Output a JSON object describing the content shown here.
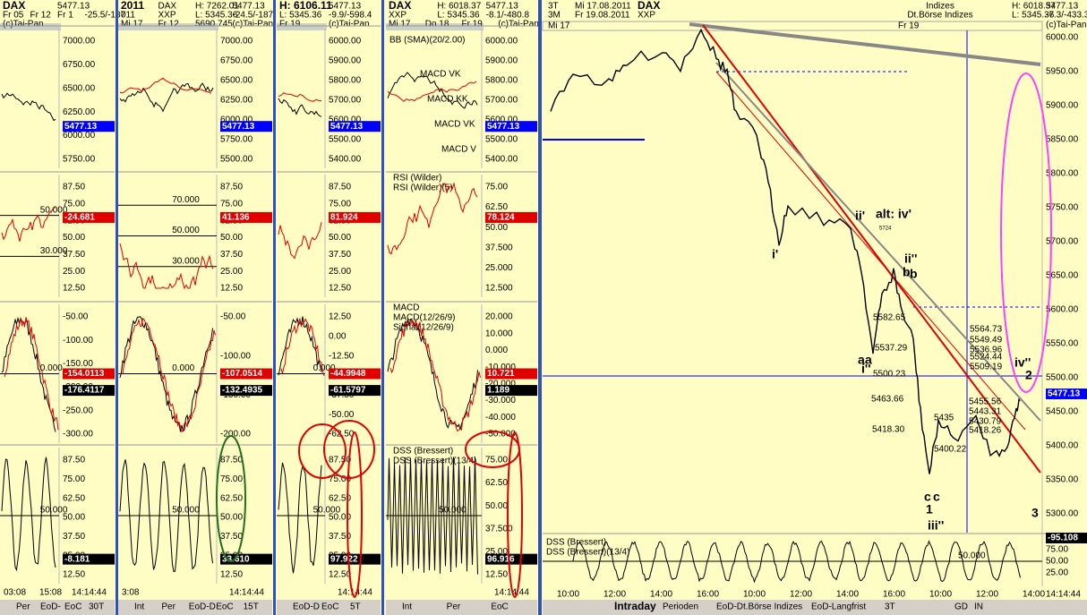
{
  "panels": [
    {
      "lines": [
        [
          "DAX",
          "5477.13"
        ],
        [
          "Fr 05",
          "Fr 12",
          "Fr 1",
          "-25.5/-187"
        ],
        [
          "(c)Tai-Pan"
        ]
      ],
      "price_axis": [
        "7000.00",
        "6750.00",
        "6500.00",
        "6250.00",
        "6000.00",
        "5750.00"
      ],
      "price_marker": "5477.13",
      "rsi_axis": [
        "87.50",
        "75.00",
        "62.50",
        "50.00",
        "37.50",
        "25.00",
        "12.50"
      ],
      "rsi_levels": [
        "50.000",
        "30.000"
      ],
      "rsi_marker": "-24.681",
      "macd_axis": [
        "-50.00",
        "-100.00",
        "-150.00",
        "-200.00",
        "-250.00",
        "-300.00"
      ],
      "macd_levels": [
        "0.000"
      ],
      "macd_markers": [
        "-154.0113",
        "-176.4117"
      ],
      "dss_axis": [
        "87.50",
        "75.00",
        "62.50",
        "50.00",
        "37.50",
        "25.00",
        "12.50"
      ],
      "dss_levels": [
        "50.000"
      ],
      "dss_marker": "-8.181",
      "times": [
        "03:08",
        "15:08"
      ],
      "tabs": [
        "Per",
        "EoD-",
        "EoC",
        "30T"
      ],
      "clock": "14:14:44"
    },
    {
      "lines": [
        [
          "2011",
          "DAX",
          "H: 7262.01",
          "5477.13"
        ],
        [
          "011",
          "XXP",
          "L: 5345.36",
          "-24.5/-187"
        ],
        [
          "Mi 17",
          "Fr 12",
          "5690.745",
          "(c)Tai-Pan"
        ]
      ],
      "price_axis": [
        "7000.00",
        "6750.00",
        "6500.00",
        "6250.00",
        "6000.00",
        "5750.00",
        "5500.00"
      ],
      "price_marker": "5477.13",
      "rsi_axis": [
        "87.50",
        "75.00",
        "62.50",
        "50.00",
        "37.50",
        "25.00",
        "12.50"
      ],
      "rsi_levels": [
        "70.000",
        "50.000",
        "30.000"
      ],
      "rsi_marker": "41.136",
      "macd_axis": [
        "-50.00",
        "-100.00",
        "-150.00",
        "-200.00"
      ],
      "macd_levels": [
        "0.000"
      ],
      "macd_markers": [
        "-107.0514",
        "-132.4935"
      ],
      "dss_axis": [
        "87.50",
        "75.00",
        "62.50",
        "50.00",
        "37.50",
        "25.00",
        "12.50"
      ],
      "dss_levels": [
        "50.000"
      ],
      "dss_marker": "33.610",
      "times": [
        "3:08"
      ],
      "tabs": [
        "Int",
        "Per",
        "EoD-D",
        "EoC",
        "15T"
      ],
      "clock": "14:14:44"
    },
    {
      "lines": [
        [
          "H: 6106.11",
          "5477.13"
        ],
        [
          "L: 5345.36",
          "-9.9/-598.4"
        ],
        [
          "Fr 19",
          "(c)Tai-Pan"
        ]
      ],
      "price_axis": [
        "6000.00",
        "5900.00",
        "5800.00",
        "5700.00",
        "5600.00",
        "5500.00",
        "5400.00"
      ],
      "price_marker": "5477.13",
      "rsi_axis": [
        "87.50",
        "75.00",
        "62.50",
        "50.00",
        "37.50",
        "25.00",
        "12.50"
      ],
      "rsi_marker": "81.924",
      "macd_axis": [
        "12.50",
        "0.00",
        "-12.50",
        "-25.00",
        "-37.50",
        "-50.00",
        "-62.50"
      ],
      "macd_levels": [
        "0.000"
      ],
      "macd_markers": [
        "-44.9948",
        "-61.5797"
      ],
      "dss_axis": [
        "87.50",
        "75.00",
        "62.50",
        "50.00",
        "37.50",
        "25.00",
        "12.50"
      ],
      "dss_levels": [
        "50.000"
      ],
      "dss_marker": "97.922",
      "tabs": [
        "EoD-D",
        "EoC",
        "5T"
      ],
      "clock": "14:14:44"
    },
    {
      "lines": [
        [
          "DAX",
          "H: 6018.37",
          "5477.13"
        ],
        [
          "XXP",
          "L: 5345.36",
          "-8.1/-480.8"
        ],
        [
          "Mi 17",
          "Do 18",
          "Fr 19",
          "(c)Tai-Pan"
        ]
      ],
      "price_axis": [
        "6000.00",
        "5900.00",
        "5800.00",
        "5700.00",
        "5600.00",
        "5500.00",
        "5400.00"
      ],
      "price_marker": "5477.13",
      "price_notes": [
        "BB (SMA)(20/2.00)",
        "MACD VK",
        "MACD KK",
        "MACD VK",
        "MACD V"
      ],
      "rsi_title": [
        "RSI (Wilder)",
        "RSI (Wilder)(5)"
      ],
      "rsi_axis": [
        "75.00",
        "62.50",
        "50.00",
        "37.500",
        "25.000",
        "12.500"
      ],
      "rsi_marker": "78.124",
      "macd_title": [
        "MACD",
        "MACD(12/26/9)",
        "Signal(12/26/9)"
      ],
      "macd_axis": [
        "20.000",
        "10.000",
        "0.000",
        "-10.000",
        "-20.000",
        "-30.000",
        "-40.000",
        "-50.000"
      ],
      "macd_markers": [
        "10.721",
        "1.189"
      ],
      "dss_title": [
        "DSS (Bressert)",
        "DSS (Bressert)(13/4)"
      ],
      "dss_axis": [
        "75.00",
        "62.50",
        "50.00",
        "37.500",
        "25.00",
        "12.50"
      ],
      "dss_levels": [
        "50.000"
      ],
      "dss_marker": "96.916",
      "tabs": [
        "Int",
        "Per",
        "EoC"
      ],
      "clock": "14:14:44"
    }
  ],
  "main": {
    "lines": [
      [
        "3T",
        "Mi 17.08.2011",
        "DAX",
        "Indizes",
        "H: 6018.37",
        "5477.13"
      ],
      [
        "3M",
        "Fr 19.08.2011",
        "XXP",
        "Dt.Börse Indizes",
        "L: 5345.36",
        "-7.3/-433.3"
      ]
    ],
    "source": "(c)Tai-Pan",
    "dates": [
      "Mi 17",
      "Fr 19"
    ],
    "price_axis": [
      "6000.00",
      "5950.00",
      "5900.00",
      "5850.00",
      "5800.00",
      "5750.00",
      "5700.00",
      "5650.00",
      "5600.00",
      "5550.00",
      "5500.00",
      "5450.00",
      "5400.00",
      "5350.00",
      "5300.00"
    ],
    "price_marker": "5477.13",
    "waves": [
      "i'",
      "ii'",
      "alt: iv'",
      "ii''",
      "b",
      "b",
      "a",
      "a",
      "i''",
      "c",
      "c",
      "1",
      "iii''",
      "iv''",
      "2",
      "3"
    ],
    "prices": [
      "5724",
      "5582.65",
      "5537.29",
      "5500.23",
      "5463.66",
      "5418.30",
      "5564.73",
      "5549.49",
      "5536.96",
      "5524.44",
      "5509.19",
      "5455.56",
      "5443.31",
      "5430.79",
      "5418.26",
      "5435",
      "5400.22"
    ],
    "dss_title": [
      "DSS (Bressert)",
      "DSS (Bressert)(13/4)"
    ],
    "dss_axis": [
      "75.00",
      "50.00",
      "25.00"
    ],
    "dss_level": "50.000",
    "dss_marker": "-95.108",
    "times": [
      "10:00",
      "12:00",
      "14:00",
      "16:00",
      "10:00",
      "12:00",
      "14:00",
      "16:00",
      "10:00",
      "12:00",
      "14:00"
    ],
    "tabs": [
      "Intraday",
      "Perioden",
      "EoD-Dt.Börse Indizes",
      "EoD-Langfrist",
      "3T",
      "GD",
      "IN"
    ],
    "clock": "14:14:44"
  }
}
